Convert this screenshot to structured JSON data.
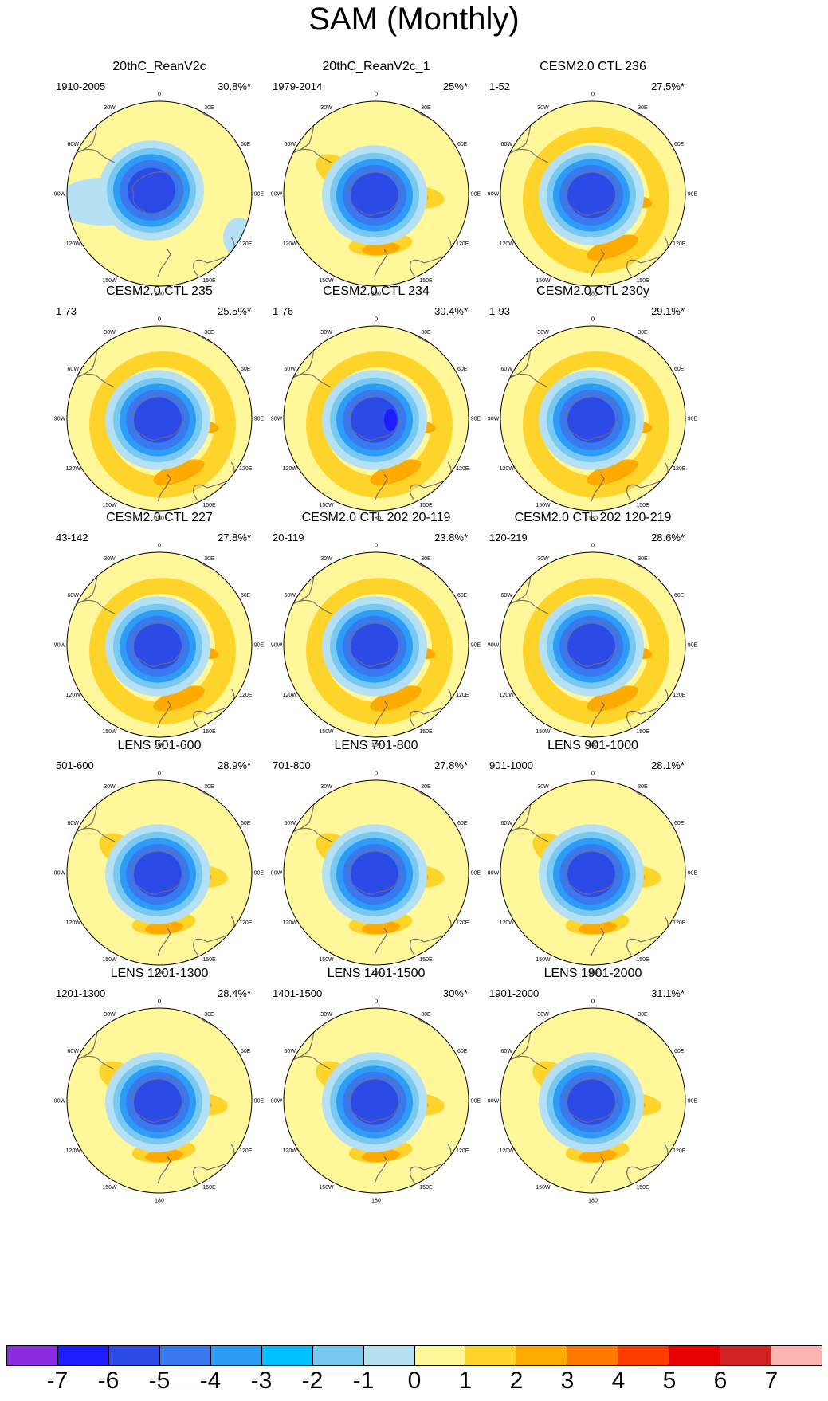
{
  "title": "SAM (Monthly)",
  "lon_labels": [
    "0",
    "30E",
    "60E",
    "90E",
    "120E",
    "150E",
    "180",
    "150W",
    "120W",
    "90W",
    "60W",
    "30W"
  ],
  "panels": [
    {
      "title": "20thC_ReanV2c",
      "range": "1910-2005",
      "pct": "30.8%*"
    },
    {
      "title": "20thC_ReanV2c_1",
      "range": "1979-2014",
      "pct": "25%*"
    },
    {
      "title": "CESM2.0 CTL 236",
      "range": "1-52",
      "pct": "27.5%*"
    },
    {
      "title": "CESM2.0 CTL 235",
      "range": "1-73",
      "pct": "25.5%*"
    },
    {
      "title": "CESM2.0 CTL 234",
      "range": "1-76",
      "pct": "30.4%*"
    },
    {
      "title": "CESM2.0 CTL 230y",
      "range": "1-93",
      "pct": "29.1%*"
    },
    {
      "title": "CESM2.0 CTL 227",
      "range": "43-142",
      "pct": "27.8%*"
    },
    {
      "title": "CESM2.0 CTL 202 20-119",
      "range": "20-119",
      "pct": "23.8%*"
    },
    {
      "title": "CESM2.0 CTL 202 120-219",
      "range": "120-219",
      "pct": "28.6%*"
    },
    {
      "title": "LENS 501-600",
      "range": "501-600",
      "pct": "28.9%*"
    },
    {
      "title": "LENS 701-800",
      "range": "701-800",
      "pct": "27.8%*"
    },
    {
      "title": "LENS 901-1000",
      "range": "901-1000",
      "pct": "28.1%*"
    },
    {
      "title": "LENS 1201-1300",
      "range": "1201-1300",
      "pct": "28.4%*"
    },
    {
      "title": "LENS 1401-1500",
      "range": "1401-1500",
      "pct": "30%*"
    },
    {
      "title": "LENS 1901-2000",
      "range": "1901-2000",
      "pct": "31.1%*"
    }
  ],
  "colorbar": {
    "colors": [
      "#8a2be2",
      "#1c1cff",
      "#2c4be6",
      "#3a78ef",
      "#2d9cf7",
      "#00c0ff",
      "#78c9f2",
      "#b6e0f4",
      "#fff799",
      "#ffd42a",
      "#ffaa00",
      "#ff7800",
      "#ff3c00",
      "#e60000",
      "#d22222",
      "#ffb4b4"
    ],
    "labels": [
      "-7",
      "-6",
      "-5",
      "-4",
      "-3",
      "-2",
      "-1",
      "0",
      "1",
      "2",
      "3",
      "4",
      "5",
      "6",
      "7"
    ]
  },
  "fill_colors": {
    "blue1": "#b6e0f4",
    "blue2": "#78c9f2",
    "blue3": "#2d9cf7",
    "blue4": "#3a78ef",
    "blue5": "#2c4be6",
    "blue6": "#1c1cff",
    "yellow": "#fff799",
    "orange1": "#ffd42a",
    "orange2": "#ffaa00",
    "coast": "#707070"
  }
}
